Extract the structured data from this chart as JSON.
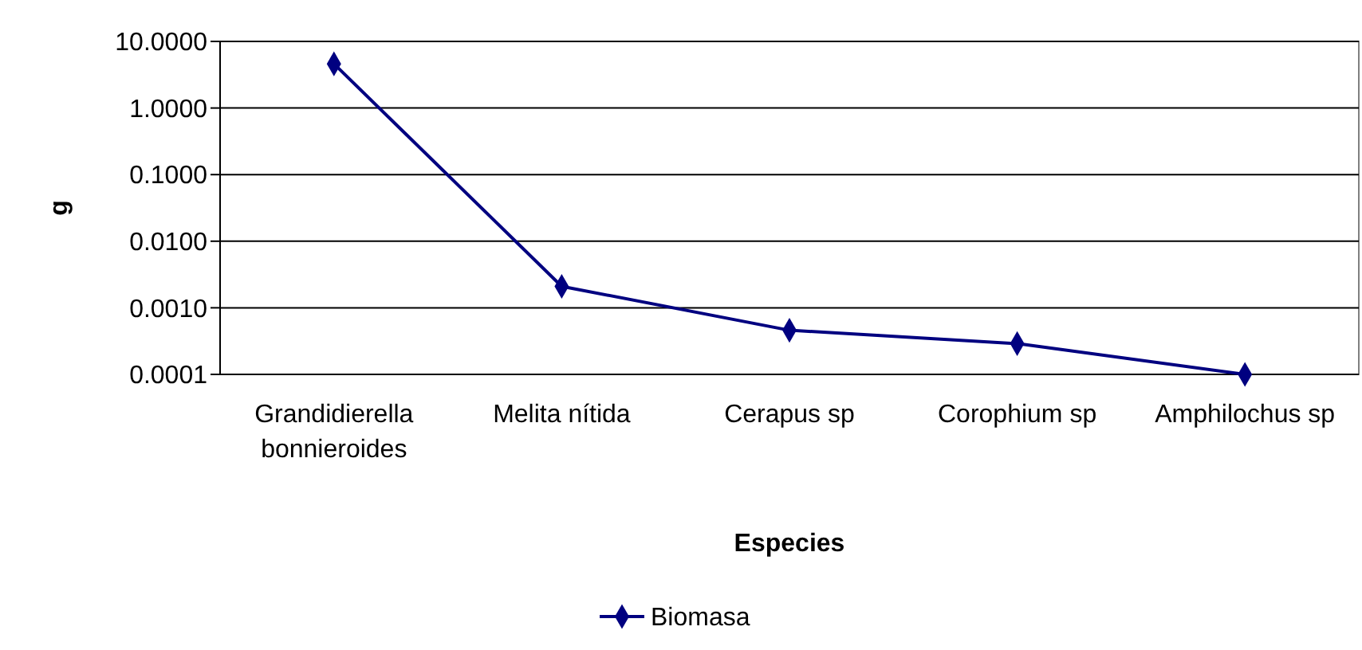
{
  "chart_data": {
    "type": "line",
    "xlabel": "Especies",
    "ylabel": "g",
    "categories": [
      "Grandidierella bonnieroides",
      "Melita nítida",
      "Cerapus sp",
      "Corophium sp",
      "Amphilochus sp"
    ],
    "series": [
      {
        "name": "Biomasa",
        "color": "#000080",
        "values": [
          4.6,
          0.0021,
          0.00046,
          0.00029,
          0.0001
        ]
      }
    ],
    "log": true,
    "ylim": [
      0.0001,
      10
    ],
    "yticks": [
      {
        "value": 0.0001,
        "label": "0.0001"
      },
      {
        "value": 0.001,
        "label": "0.0010"
      },
      {
        "value": 0.01,
        "label": "0.0100"
      },
      {
        "value": 0.1,
        "label": "0.1000"
      },
      {
        "value": 1,
        "label": "1.0000"
      },
      {
        "value": 10,
        "label": "10.0000"
      }
    ],
    "grid": "y",
    "legend": "bottom",
    "marker": "diamond",
    "line_style": "solid"
  }
}
